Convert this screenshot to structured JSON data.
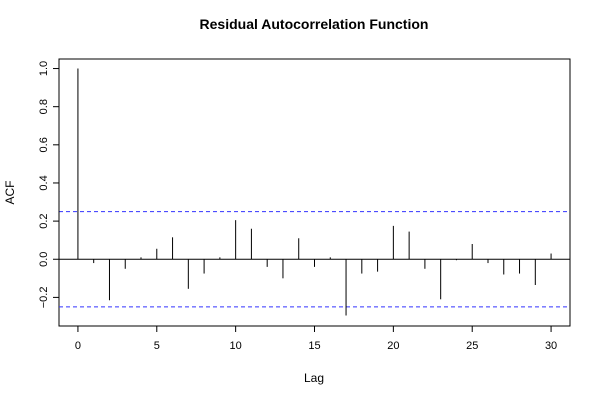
{
  "chart_data": {
    "type": "bar",
    "title": "Residual Autocorrelation Function",
    "xlabel": "Lag",
    "ylabel": "ACF",
    "xlim": [
      -1.2,
      31.2
    ],
    "ylim": [
      -0.35,
      1.05
    ],
    "x_ticks": [
      0,
      5,
      10,
      15,
      20,
      25,
      30
    ],
    "y_ticks": [
      -0.2,
      0.0,
      0.2,
      0.4,
      0.6,
      0.8,
      1.0
    ],
    "y_tick_labels": [
      "−0.2",
      "0.0",
      "0.2",
      "0.4",
      "0.6",
      "0.8",
      "1.0"
    ],
    "x": [
      0,
      1,
      2,
      3,
      4,
      5,
      6,
      7,
      8,
      9,
      10,
      11,
      12,
      13,
      14,
      15,
      16,
      17,
      18,
      19,
      20,
      21,
      22,
      23,
      24,
      25,
      26,
      27,
      28,
      29,
      30
    ],
    "values": [
      1.0,
      -0.02,
      -0.215,
      -0.05,
      0.01,
      0.055,
      0.115,
      -0.155,
      -0.075,
      0.01,
      0.205,
      0.16,
      -0.04,
      -0.1,
      0.11,
      -0.04,
      0.01,
      -0.295,
      -0.075,
      -0.065,
      0.175,
      0.145,
      -0.05,
      -0.21,
      -0.005,
      0.08,
      -0.02,
      -0.08,
      -0.075,
      -0.135,
      0.03
    ],
    "confidence_bound": 0.25,
    "confidence_line_color": "#3333ff",
    "grid": false,
    "legend": "none"
  }
}
